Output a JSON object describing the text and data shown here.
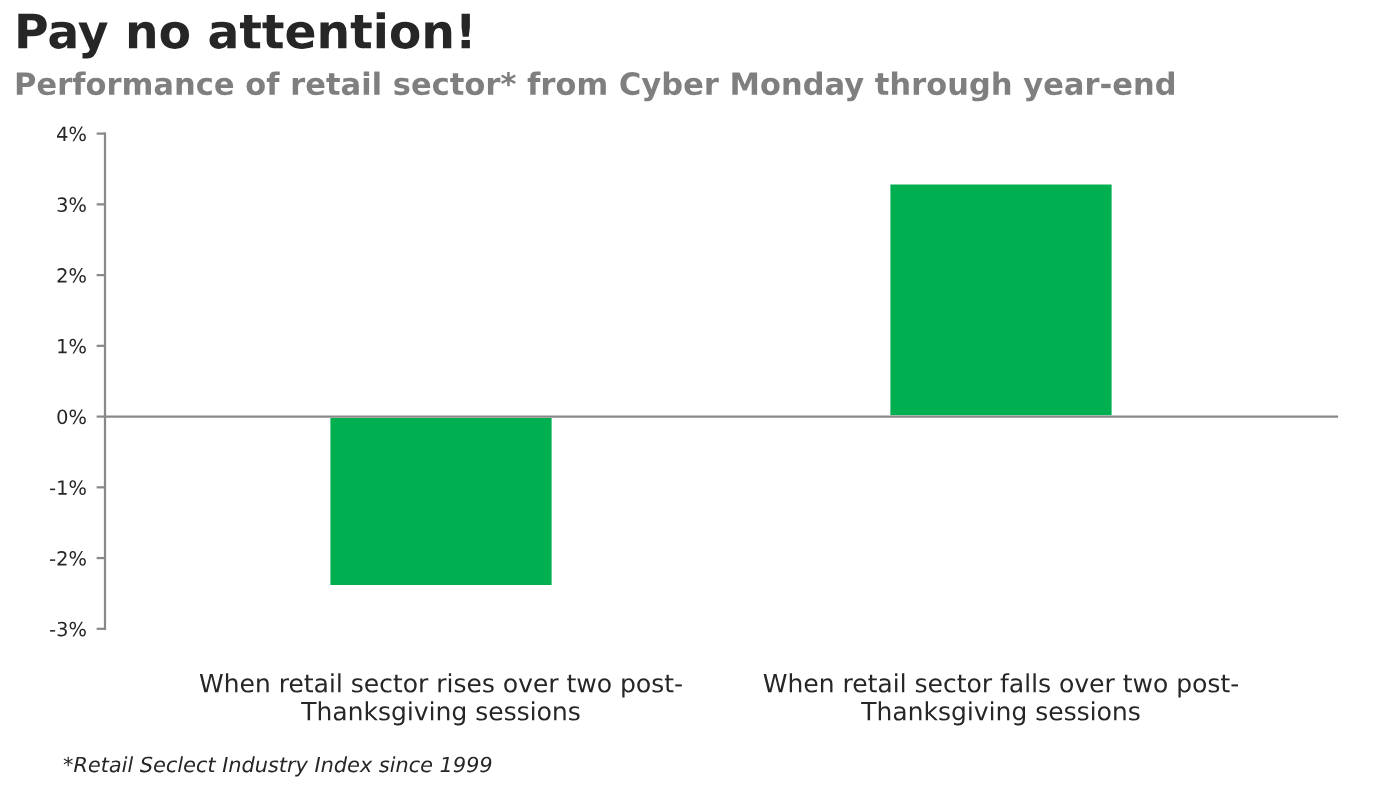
{
  "chart_data": {
    "type": "bar",
    "title": "Pay no attention!",
    "subtitle": "Performance of retail sector* from Cyber Monday through year-end",
    "categories": [
      "When retail sector rises over two post-\nThanksgiving sessions",
      "When retail sector falls over two post-\nThanksgiving sessions"
    ],
    "values": [
      -2.4,
      3.3
    ],
    "color": "#00b050",
    "ylim": [
      -3,
      4
    ],
    "yticks": [
      {
        "value": -3,
        "label": "-3%"
      },
      {
        "value": -2,
        "label": "-2%"
      },
      {
        "value": -1,
        "label": "-1%"
      },
      {
        "value": 0,
        "label": "0%"
      },
      {
        "value": 1,
        "label": "1%"
      },
      {
        "value": 2,
        "label": "2%"
      },
      {
        "value": 3,
        "label": "3%"
      },
      {
        "value": 4,
        "label": "4%"
      }
    ],
    "legend": false,
    "annotations": [
      "*Retail Seclect Industry Index since 1999"
    ]
  }
}
